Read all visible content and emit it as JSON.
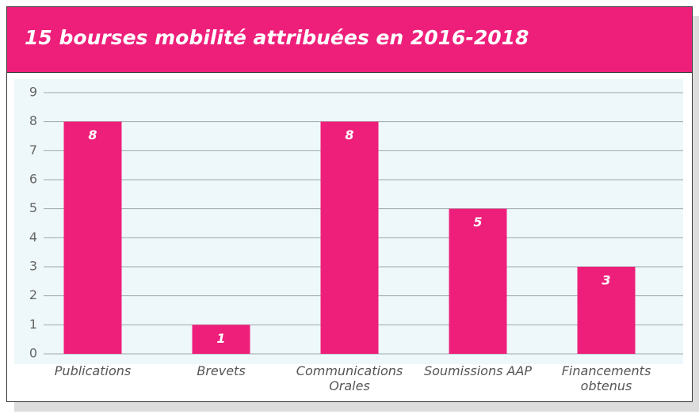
{
  "chart_data": {
    "type": "bar",
    "title": "15 bourses mobilité attribuées en 2016-2018",
    "categories": [
      "Publications",
      "Brevets",
      "Communications Orales",
      "Soumissions AAP",
      "Financements obtenus"
    ],
    "values": [
      8,
      1,
      8,
      5,
      3
    ],
    "color": "#ee1f7a",
    "ylim": [
      0,
      9
    ],
    "yticks": [
      0,
      1,
      2,
      3,
      4,
      5,
      6,
      7,
      8,
      9
    ],
    "grid": true
  }
}
